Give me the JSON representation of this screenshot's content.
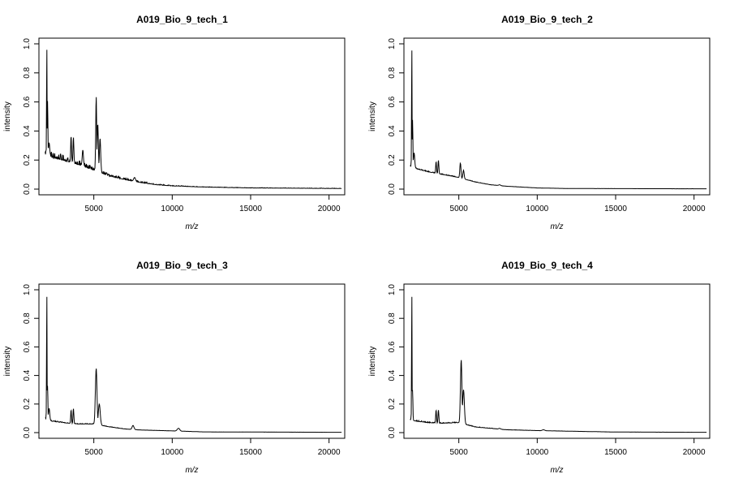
{
  "chart_data": [
    {
      "type": "line",
      "title": "A019_Bio_9_tech_1",
      "xlabel": "m/z",
      "ylabel": "intensity",
      "xlim": [
        1500,
        21000
      ],
      "ylim": [
        0,
        1.0
      ],
      "xticks": [
        5000,
        10000,
        15000,
        20000
      ],
      "yticks": [
        0.0,
        0.2,
        0.4,
        0.6,
        0.8,
        1.0
      ],
      "grid": false,
      "x_range": [
        1900,
        20800
      ],
      "baseline": [
        [
          1900,
          0.24
        ],
        [
          2300,
          0.22
        ],
        [
          3000,
          0.2
        ],
        [
          4000,
          0.17
        ],
        [
          5000,
          0.13
        ],
        [
          5500,
          0.11
        ],
        [
          6000,
          0.09
        ],
        [
          7000,
          0.065
        ],
        [
          8000,
          0.045
        ],
        [
          9000,
          0.03
        ],
        [
          10000,
          0.022
        ],
        [
          12000,
          0.014
        ],
        [
          15000,
          0.008
        ],
        [
          20800,
          0.004
        ]
      ],
      "noise": 0.09,
      "peaks": [
        {
          "x": 2000,
          "y": 1.0,
          "w": 15
        },
        {
          "x": 2050,
          "y": 0.61,
          "w": 20
        },
        {
          "x": 2150,
          "y": 0.32,
          "w": 40
        },
        {
          "x": 3550,
          "y": 0.37,
          "w": 25
        },
        {
          "x": 3700,
          "y": 0.36,
          "w": 25
        },
        {
          "x": 4300,
          "y": 0.27,
          "w": 40
        },
        {
          "x": 5150,
          "y": 0.64,
          "w": 30
        },
        {
          "x": 5250,
          "y": 0.45,
          "w": 40
        },
        {
          "x": 5400,
          "y": 0.35,
          "w": 40
        },
        {
          "x": 7600,
          "y": 0.08,
          "w": 60
        }
      ]
    },
    {
      "type": "line",
      "title": "A019_Bio_9_tech_2",
      "xlabel": "m/z",
      "ylabel": "intensity",
      "xlim": [
        1500,
        21000
      ],
      "ylim": [
        0,
        1.0
      ],
      "xticks": [
        5000,
        10000,
        15000,
        20000
      ],
      "yticks": [
        0.0,
        0.2,
        0.4,
        0.6,
        0.8,
        1.0
      ],
      "grid": false,
      "x_range": [
        1900,
        20800
      ],
      "baseline": [
        [
          1900,
          0.16
        ],
        [
          2300,
          0.14
        ],
        [
          3000,
          0.12
        ],
        [
          4000,
          0.1
        ],
        [
          5000,
          0.08
        ],
        [
          6000,
          0.05
        ],
        [
          7000,
          0.03
        ],
        [
          8000,
          0.02
        ],
        [
          10000,
          0.008
        ],
        [
          12000,
          0.004
        ],
        [
          20800,
          0.002
        ]
      ],
      "noise": 0.015,
      "peaks": [
        {
          "x": 2000,
          "y": 1.0,
          "w": 15
        },
        {
          "x": 2050,
          "y": 0.48,
          "w": 20
        },
        {
          "x": 2150,
          "y": 0.25,
          "w": 40
        },
        {
          "x": 3550,
          "y": 0.19,
          "w": 25
        },
        {
          "x": 3700,
          "y": 0.2,
          "w": 25
        },
        {
          "x": 5100,
          "y": 0.18,
          "w": 35
        },
        {
          "x": 5300,
          "y": 0.13,
          "w": 40
        },
        {
          "x": 7600,
          "y": 0.03,
          "w": 60
        }
      ]
    },
    {
      "type": "line",
      "title": "A019_Bio_9_tech_3",
      "xlabel": "m/z",
      "ylabel": "intensity",
      "xlim": [
        1500,
        21000
      ],
      "ylim": [
        0,
        1.0
      ],
      "xticks": [
        5000,
        10000,
        15000,
        20000
      ],
      "yticks": [
        0.0,
        0.2,
        0.4,
        0.6,
        0.8,
        1.0
      ],
      "grid": false,
      "x_range": [
        1900,
        20800
      ],
      "baseline": [
        [
          1900,
          0.1
        ],
        [
          2300,
          0.08
        ],
        [
          3000,
          0.07
        ],
        [
          4000,
          0.06
        ],
        [
          5000,
          0.06
        ],
        [
          6000,
          0.04
        ],
        [
          7000,
          0.025
        ],
        [
          8000,
          0.018
        ],
        [
          10000,
          0.012
        ],
        [
          12000,
          0.005
        ],
        [
          20800,
          0.002
        ]
      ],
      "noise": 0.015,
      "peaks": [
        {
          "x": 2000,
          "y": 1.0,
          "w": 15
        },
        {
          "x": 2050,
          "y": 0.33,
          "w": 20
        },
        {
          "x": 2150,
          "y": 0.17,
          "w": 40
        },
        {
          "x": 3550,
          "y": 0.16,
          "w": 25
        },
        {
          "x": 3700,
          "y": 0.17,
          "w": 25
        },
        {
          "x": 5150,
          "y": 0.45,
          "w": 50
        },
        {
          "x": 5350,
          "y": 0.2,
          "w": 60
        },
        {
          "x": 7500,
          "y": 0.05,
          "w": 60
        },
        {
          "x": 10400,
          "y": 0.03,
          "w": 80
        }
      ]
    },
    {
      "type": "line",
      "title": "A019_Bio_9_tech_4",
      "xlabel": "m/z",
      "ylabel": "intensity",
      "xlim": [
        1500,
        21000
      ],
      "ylim": [
        0,
        1.0
      ],
      "xticks": [
        5000,
        10000,
        15000,
        20000
      ],
      "yticks": [
        0.0,
        0.2,
        0.4,
        0.6,
        0.8,
        1.0
      ],
      "grid": false,
      "x_range": [
        1900,
        20800
      ],
      "baseline": [
        [
          1900,
          0.09
        ],
        [
          2300,
          0.08
        ],
        [
          3000,
          0.07
        ],
        [
          4000,
          0.065
        ],
        [
          5000,
          0.07
        ],
        [
          6000,
          0.04
        ],
        [
          7000,
          0.03
        ],
        [
          8000,
          0.02
        ],
        [
          10000,
          0.014
        ],
        [
          12000,
          0.01
        ],
        [
          15000,
          0.004
        ],
        [
          20800,
          0.002
        ]
      ],
      "noise": 0.015,
      "peaks": [
        {
          "x": 2000,
          "y": 1.0,
          "w": 15
        },
        {
          "x": 2050,
          "y": 0.3,
          "w": 20
        },
        {
          "x": 3550,
          "y": 0.16,
          "w": 25
        },
        {
          "x": 3700,
          "y": 0.16,
          "w": 25
        },
        {
          "x": 5150,
          "y": 0.51,
          "w": 45
        },
        {
          "x": 5300,
          "y": 0.3,
          "w": 55
        },
        {
          "x": 7600,
          "y": 0.03,
          "w": 60
        },
        {
          "x": 10400,
          "y": 0.02,
          "w": 80
        }
      ]
    }
  ]
}
